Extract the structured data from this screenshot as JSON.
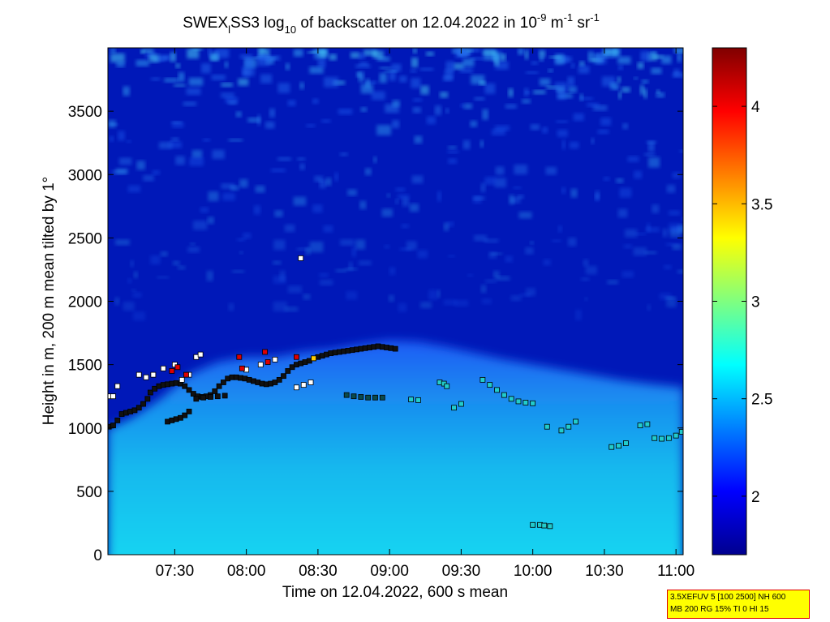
{
  "chart_data": {
    "type": "heatmap",
    "title": {
      "part1": "SWEX",
      "sub1": "l",
      "part2": "SS3 log",
      "sub2": "10",
      "part3": " of backscatter on 12.04.2022 in 10",
      "sup1": "-9",
      "part4": " m",
      "sup2": "-1",
      "part5": " sr",
      "sup3": "-1"
    },
    "xlabel": "Time on 12.04.2022, 600 s mean",
    "ylabel": "Height in m, 200 m mean tilted by 1°",
    "x_unit": "hours",
    "xlim": [
      7.0333,
      11.05
    ],
    "ylim": [
      0,
      4000
    ],
    "x_ticks": [
      {
        "value": 7.5,
        "label": "07:30"
      },
      {
        "value": 8.0,
        "label": "08:00"
      },
      {
        "value": 8.5,
        "label": "08:30"
      },
      {
        "value": 9.0,
        "label": "09:00"
      },
      {
        "value": 9.5,
        "label": "09:30"
      },
      {
        "value": 10.0,
        "label": "10:00"
      },
      {
        "value": 10.5,
        "label": "10:30"
      },
      {
        "value": 11.0,
        "label": "11:00"
      }
    ],
    "y_ticks": [
      {
        "value": 0,
        "label": "0"
      },
      {
        "value": 500,
        "label": "500"
      },
      {
        "value": 1000,
        "label": "1000"
      },
      {
        "value": 1500,
        "label": "1500"
      },
      {
        "value": 2000,
        "label": "2000"
      },
      {
        "value": 2500,
        "label": "2500"
      },
      {
        "value": 3000,
        "label": "3000"
      },
      {
        "value": 3500,
        "label": "3500"
      }
    ],
    "colorbar": {
      "colormap": "jet",
      "min": 1.7,
      "max": 4.3,
      "ticks": [
        {
          "value": 2,
          "label": "2"
        },
        {
          "value": 2.5,
          "label": "2.5"
        },
        {
          "value": 3,
          "label": "3"
        },
        {
          "value": 3.5,
          "label": "3.5"
        },
        {
          "value": 4,
          "label": "4"
        }
      ]
    },
    "mixing_layer_height": [
      {
        "t": 7.05,
        "h": 1000
      },
      {
        "t": 7.2,
        "h": 1080
      },
      {
        "t": 7.4,
        "h": 1230
      },
      {
        "t": 7.6,
        "h": 1420
      },
      {
        "t": 7.8,
        "h": 1520
      },
      {
        "t": 8.0,
        "h": 1560
      },
      {
        "t": 8.2,
        "h": 1560
      },
      {
        "t": 8.4,
        "h": 1600
      },
      {
        "t": 8.6,
        "h": 1620
      },
      {
        "t": 8.8,
        "h": 1660
      },
      {
        "t": 9.0,
        "h": 1690
      },
      {
        "t": 9.2,
        "h": 1680
      },
      {
        "t": 9.4,
        "h": 1640
      },
      {
        "t": 9.6,
        "h": 1590
      },
      {
        "t": 9.8,
        "h": 1540
      },
      {
        "t": 10.0,
        "h": 1500
      },
      {
        "t": 10.2,
        "h": 1460
      },
      {
        "t": 10.4,
        "h": 1420
      },
      {
        "t": 10.6,
        "h": 1380
      },
      {
        "t": 10.8,
        "h": 1350
      },
      {
        "t": 11.05,
        "h": 1320
      }
    ],
    "marker_tracks": [
      {
        "points": [
          [
            7.04,
            1010
          ],
          [
            7.07,
            1020
          ],
          [
            7.1,
            1060
          ],
          [
            7.13,
            1110
          ],
          [
            7.16,
            1120
          ],
          [
            7.19,
            1130
          ],
          [
            7.22,
            1140
          ],
          [
            7.25,
            1160
          ],
          [
            7.28,
            1190
          ],
          [
            7.31,
            1230
          ],
          [
            7.33,
            1280
          ],
          [
            7.36,
            1310
          ],
          [
            7.39,
            1330
          ],
          [
            7.42,
            1340
          ],
          [
            7.45,
            1345
          ],
          [
            7.48,
            1350
          ],
          [
            7.51,
            1355
          ],
          [
            7.54,
            1350
          ],
          [
            7.57,
            1330
          ],
          [
            7.6,
            1300
          ],
          [
            7.63,
            1270
          ],
          [
            7.66,
            1250
          ],
          [
            7.69,
            1245
          ],
          [
            7.72,
            1250
          ],
          [
            7.75,
            1260
          ],
          [
            7.78,
            1290
          ],
          [
            7.81,
            1330
          ],
          [
            7.84,
            1360
          ],
          [
            7.87,
            1390
          ],
          [
            7.9,
            1400
          ],
          [
            7.93,
            1400
          ],
          [
            7.96,
            1395
          ],
          [
            7.99,
            1390
          ],
          [
            8.02,
            1380
          ],
          [
            8.05,
            1370
          ],
          [
            8.08,
            1360
          ],
          [
            8.11,
            1350
          ],
          [
            8.14,
            1345
          ],
          [
            8.17,
            1350
          ],
          [
            8.2,
            1360
          ],
          [
            8.23,
            1380
          ],
          [
            8.26,
            1410
          ],
          [
            8.29,
            1450
          ],
          [
            8.32,
            1480
          ],
          [
            8.35,
            1500
          ],
          [
            8.38,
            1510
          ],
          [
            8.41,
            1520
          ],
          [
            8.44,
            1530
          ],
          [
            8.47,
            1550
          ],
          [
            8.5,
            1560
          ],
          [
            8.53,
            1570
          ],
          [
            8.56,
            1580
          ],
          [
            8.59,
            1590
          ],
          [
            8.62,
            1595
          ],
          [
            8.65,
            1600
          ],
          [
            8.68,
            1605
          ],
          [
            8.71,
            1610
          ],
          [
            8.74,
            1615
          ],
          [
            8.77,
            1620
          ],
          [
            8.8,
            1625
          ],
          [
            8.83,
            1630
          ],
          [
            8.86,
            1635
          ],
          [
            8.89,
            1640
          ],
          [
            8.92,
            1645
          ],
          [
            8.95,
            1640
          ],
          [
            8.98,
            1635
          ],
          [
            9.01,
            1630
          ],
          [
            9.04,
            1625
          ]
        ],
        "color": "#111111"
      },
      {
        "points": [
          [
            7.45,
            1050
          ],
          [
            7.48,
            1060
          ],
          [
            7.51,
            1070
          ],
          [
            7.54,
            1080
          ],
          [
            7.57,
            1100
          ],
          [
            7.6,
            1130
          ]
        ],
        "color": "#111111"
      },
      {
        "points": [
          [
            7.65,
            1230
          ],
          [
            7.7,
            1240
          ],
          [
            7.75,
            1245
          ],
          [
            7.8,
            1250
          ],
          [
            7.85,
            1255
          ]
        ],
        "color": "#111111"
      },
      {
        "points": [
          [
            8.7,
            1260
          ],
          [
            8.75,
            1250
          ],
          [
            8.8,
            1245
          ],
          [
            8.85,
            1240
          ],
          [
            8.9,
            1240
          ],
          [
            8.95,
            1240
          ]
        ],
        "color": "#0b4a4a"
      },
      {
        "points": [
          [
            9.15,
            1225
          ],
          [
            9.2,
            1220
          ]
        ],
        "color": "#22cccc"
      },
      {
        "points": [
          [
            9.35,
            1360
          ],
          [
            9.38,
            1350
          ],
          [
            9.4,
            1330
          ]
        ],
        "color": "#22cccc"
      },
      {
        "points": [
          [
            9.45,
            1160
          ],
          [
            9.5,
            1190
          ]
        ],
        "color": "#22cccc"
      },
      {
        "points": [
          [
            9.65,
            1380
          ],
          [
            9.7,
            1340
          ],
          [
            9.75,
            1300
          ],
          [
            9.8,
            1260
          ],
          [
            9.85,
            1230
          ],
          [
            9.9,
            1210
          ],
          [
            9.95,
            1200
          ],
          [
            10.0,
            1195
          ]
        ],
        "color": "#22cccc"
      },
      {
        "points": [
          [
            10.1,
            1010
          ],
          [
            10.2,
            980
          ],
          [
            10.25,
            1010
          ],
          [
            10.3,
            1050
          ]
        ],
        "color": "#22cccc"
      },
      {
        "points": [
          [
            10.55,
            850
          ],
          [
            10.6,
            860
          ],
          [
            10.65,
            880
          ]
        ],
        "color": "#22cccc"
      },
      {
        "points": [
          [
            10.75,
            1020
          ],
          [
            10.8,
            1030
          ]
        ],
        "color": "#22cccc"
      },
      {
        "points": [
          [
            10.85,
            920
          ],
          [
            10.9,
            915
          ],
          [
            10.95,
            920
          ],
          [
            11.0,
            940
          ],
          [
            11.04,
            970
          ]
        ],
        "color": "#22cccc"
      },
      {
        "points": [
          [
            10.0,
            235
          ],
          [
            10.05,
            235
          ],
          [
            10.08,
            230
          ],
          [
            10.12,
            225
          ]
        ],
        "color": "#22cccc"
      },
      {
        "points": [
          [
            7.25,
            1420
          ],
          [
            7.3,
            1400
          ],
          [
            7.35,
            1420
          ],
          [
            7.42,
            1470
          ],
          [
            7.5,
            1500
          ]
        ],
        "color": "#ffffff"
      },
      {
        "points": [
          [
            7.55,
            1380
          ],
          [
            7.6,
            1420
          ],
          [
            7.65,
            1560
          ],
          [
            7.68,
            1580
          ]
        ],
        "color": "#ffffff"
      },
      {
        "points": [
          [
            8.0,
            1460
          ],
          [
            8.1,
            1500
          ],
          [
            8.2,
            1540
          ]
        ],
        "color": "#ffffff"
      },
      {
        "points": [
          [
            8.35,
            1320
          ],
          [
            8.4,
            1340
          ],
          [
            8.45,
            1360
          ]
        ],
        "color": "#ffffff"
      },
      {
        "points": [
          [
            7.04,
            1250
          ],
          [
            7.07,
            1250
          ],
          [
            7.1,
            1330
          ]
        ],
        "color": "#ffffff"
      },
      {
        "points": [
          [
            8.38,
            2340
          ]
        ],
        "color": "#ffffff"
      },
      {
        "points": [
          [
            7.48,
            1450
          ],
          [
            7.52,
            1480
          ],
          [
            7.58,
            1420
          ]
        ],
        "color": "#dd0000"
      },
      {
        "points": [
          [
            7.95,
            1560
          ],
          [
            7.97,
            1470
          ]
        ],
        "color": "#dd0000"
      },
      {
        "points": [
          [
            8.13,
            1600
          ],
          [
            8.15,
            1520
          ],
          [
            8.35,
            1560
          ]
        ],
        "color": "#dd0000"
      },
      {
        "points": [
          [
            8.47,
            1550
          ]
        ],
        "color": "#ffcc00"
      }
    ]
  },
  "info_box": {
    "line1": "3.5XEFUV 5 [100 2500] NH 600",
    "line2": "MB 200 RG 15% TI 0 HI 15"
  }
}
